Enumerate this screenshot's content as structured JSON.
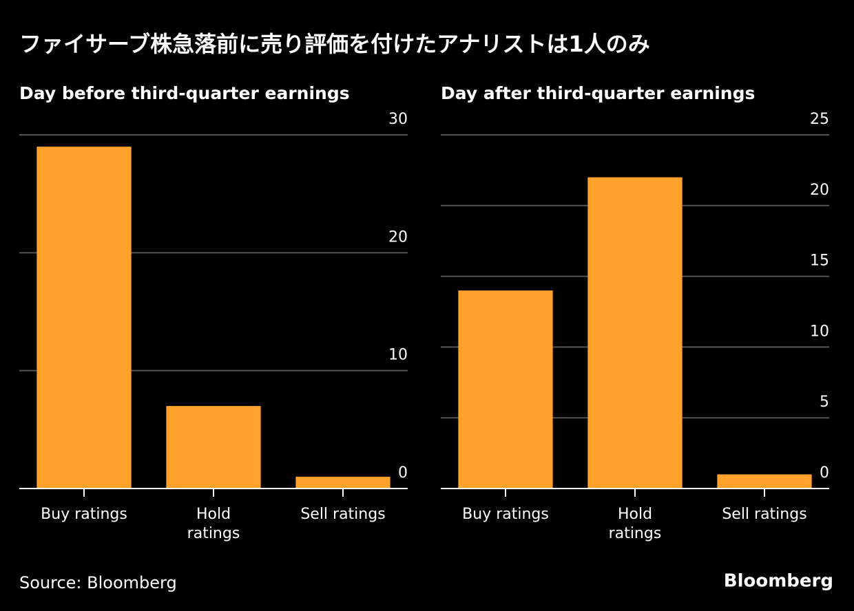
{
  "title": "ファイサーブ株急落前に売り評価を付けたアナリストは1人のみ",
  "chart_data": [
    {
      "type": "bar",
      "subtitle": "Day before third-quarter earnings",
      "categories": [
        "Buy ratings",
        "Hold\nratings",
        "Sell ratings"
      ],
      "values": [
        29,
        7,
        1
      ],
      "color": "#ffa12b",
      "ylim": [
        0,
        30
      ],
      "yticks": [
        0,
        10,
        20,
        30
      ],
      "grid": true
    },
    {
      "type": "bar",
      "subtitle": "Day after third-quarter earnings",
      "categories": [
        "Buy ratings",
        "Hold\nratings",
        "Sell ratings"
      ],
      "values": [
        14,
        22,
        1
      ],
      "color": "#ffa12b",
      "ylim": [
        0,
        25
      ],
      "yticks": [
        0,
        5,
        10,
        15,
        20,
        25
      ],
      "grid": true
    }
  ],
  "source": "Source: Bloomberg",
  "logo": "Bloomberg"
}
